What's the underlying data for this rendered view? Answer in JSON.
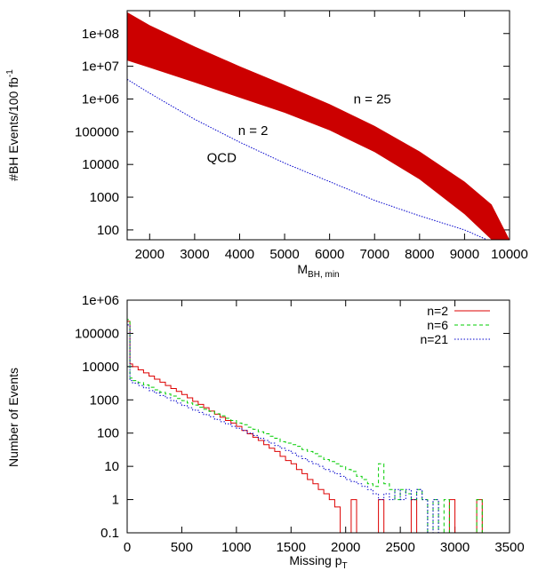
{
  "chart_data": [
    {
      "type": "area",
      "title": "",
      "xlabel": "M",
      "xlabel_sub": "BH, min",
      "ylabel": "#BH Events/100 fb",
      "ylabel_sup": "-1",
      "xlim": [
        1500,
        10000
      ],
      "ylim": [
        50,
        500000000
      ],
      "yscale": "log",
      "grid": false,
      "x_ticks": [
        2000,
        3000,
        4000,
        5000,
        6000,
        7000,
        8000,
        9000,
        10000
      ],
      "x_tick_labels": [
        "2000",
        "3000",
        "4000",
        "5000",
        "6000",
        "7000",
        "8000",
        "9000",
        "10000"
      ],
      "y_ticks": [
        100,
        1000,
        10000,
        100000,
        1000000,
        10000000,
        100000000
      ],
      "y_tick_labels": [
        "100",
        "1000",
        "10000",
        "100000",
        "1e+06",
        "1e+07",
        "1e+08"
      ],
      "band": {
        "color": "#cc0000",
        "x": [
          1500,
          2000,
          3000,
          4000,
          5000,
          6000,
          7000,
          8000,
          9000,
          9600,
          10000
        ],
        "upper": [
          450000000,
          180000000,
          40000000,
          10000000,
          2700000,
          700000,
          150000,
          25000,
          3000,
          600,
          50
        ],
        "lower": [
          15000000,
          9000000,
          3200000,
          1100000,
          380000,
          110000,
          24000,
          3500,
          300,
          50,
          50
        ]
      },
      "series": [
        {
          "color": "#0000cc",
          "x": [
            1500,
            2000,
            3000,
            4000,
            5000,
            6000,
            7000,
            8000,
            9000,
            9500
          ],
          "y": [
            4000000,
            1500000,
            240000,
            48000,
            11000,
            3000,
            800,
            270,
            100,
            50
          ]
        }
      ],
      "annotations": [
        {
          "text": "n = 25",
          "x": 6950,
          "y": 1000000
        },
        {
          "text": "n = 2",
          "x": 4300,
          "y": 110000
        },
        {
          "text": "QCD",
          "x": 3600,
          "y": 16000
        }
      ]
    },
    {
      "type": "line",
      "title": "",
      "xlabel": "Missing p",
      "xlabel_sub": "T",
      "ylabel": "Number of Events",
      "xlim": [
        0,
        3500
      ],
      "ylim": [
        0.1,
        1000000
      ],
      "yscale": "log",
      "grid": false,
      "legend_position": "top-right",
      "x_ticks": [
        0,
        500,
        1000,
        1500,
        2000,
        2500,
        3000,
        3500
      ],
      "x_tick_labels": [
        "0",
        "500",
        "1000",
        "1500",
        "2000",
        "2500",
        "3000",
        "3500"
      ],
      "y_ticks": [
        0.1,
        1,
        10,
        100,
        1000,
        10000,
        100000,
        1000000
      ],
      "y_tick_labels": [
        "0.1",
        "1",
        "10",
        "100",
        "1000",
        "10000",
        "100000",
        "1e+06"
      ],
      "series": [
        {
          "name": "n=2",
          "color": "#dd0000",
          "dash": "",
          "x": [
            0,
            25,
            50,
            100,
            150,
            200,
            250,
            300,
            350,
            400,
            450,
            500,
            550,
            600,
            650,
            700,
            750,
            800,
            850,
            900,
            950,
            1000,
            1050,
            1100,
            1150,
            1200,
            1250,
            1300,
            1350,
            1400,
            1450,
            1500,
            1550,
            1600,
            1650,
            1700,
            1750,
            1800,
            1850,
            1900,
            1950,
            2050,
            2100,
            2300,
            2350,
            2600,
            2650,
            2950,
            3000,
            3200,
            3250
          ],
          "y": [
            230000,
            12000,
            10000,
            8000,
            6500,
            5200,
            4200,
            3400,
            2700,
            2200,
            1800,
            1450,
            1150,
            900,
            730,
            580,
            460,
            370,
            300,
            240,
            200,
            160,
            120,
            95,
            75,
            60,
            45,
            35,
            28,
            20,
            15,
            12,
            8,
            6,
            4,
            3,
            2,
            1.5,
            1,
            0.6,
            0.1,
            1,
            0.1,
            1,
            0.1,
            1,
            0.1,
            1,
            0.1,
            1,
            0.1
          ]
        },
        {
          "name": "n=6",
          "color": "#00cc00",
          "dash": "4,3",
          "x": [
            0,
            25,
            50,
            100,
            150,
            200,
            250,
            300,
            350,
            400,
            450,
            500,
            550,
            600,
            650,
            700,
            750,
            800,
            850,
            900,
            950,
            1000,
            1050,
            1100,
            1150,
            1200,
            1250,
            1300,
            1350,
            1400,
            1450,
            1500,
            1550,
            1600,
            1650,
            1700,
            1750,
            1800,
            1850,
            1900,
            1950,
            2000,
            2050,
            2100,
            2150,
            2200,
            2250,
            2300,
            2350,
            2400,
            2450,
            2500,
            2550,
            2600,
            2650,
            2700,
            2750,
            2800,
            2850,
            2900,
            2950,
            3000,
            3200,
            3250
          ],
          "y": [
            260000,
            4500,
            3800,
            3300,
            2800,
            2400,
            2000,
            1700,
            1500,
            1300,
            1100,
            950,
            800,
            700,
            600,
            520,
            450,
            380,
            330,
            280,
            240,
            200,
            180,
            150,
            130,
            110,
            95,
            80,
            70,
            55,
            50,
            45,
            40,
            32,
            28,
            24,
            20,
            16,
            14,
            12,
            10,
            8,
            7,
            5,
            4,
            3,
            2.5,
            12,
            3,
            2,
            1,
            2,
            1.5,
            1,
            2,
            1,
            0.1,
            1,
            0.1,
            1,
            0.1,
            0.1,
            1,
            0.1
          ]
        },
        {
          "name": "n=21",
          "color": "#0000cc",
          "dash": "1.5,2",
          "x": [
            0,
            25,
            50,
            100,
            150,
            200,
            250,
            300,
            350,
            400,
            450,
            500,
            550,
            600,
            650,
            700,
            750,
            800,
            850,
            900,
            950,
            1000,
            1050,
            1100,
            1150,
            1200,
            1250,
            1300,
            1350,
            1400,
            1450,
            1500,
            1550,
            1600,
            1650,
            1700,
            1750,
            1800,
            1850,
            1900,
            1950,
            2000,
            2050,
            2100,
            2150,
            2200,
            2250,
            2300,
            2350,
            2400,
            2450,
            2500,
            2550,
            2600,
            2650,
            2700,
            2750,
            2800,
            2850
          ],
          "y": [
            180000,
            3800,
            3200,
            2700,
            2300,
            1900,
            1600,
            1350,
            1150,
            950,
            800,
            680,
            580,
            490,
            420,
            360,
            310,
            260,
            220,
            190,
            160,
            140,
            120,
            100,
            85,
            70,
            60,
            50,
            42,
            35,
            30,
            25,
            20,
            17,
            14,
            12,
            10,
            8,
            7,
            6,
            5,
            4,
            3.5,
            3,
            2.5,
            2,
            1.5,
            1,
            1.5,
            1,
            2,
            1,
            2,
            1,
            2,
            1,
            0.1,
            1,
            0.1
          ]
        }
      ]
    }
  ]
}
